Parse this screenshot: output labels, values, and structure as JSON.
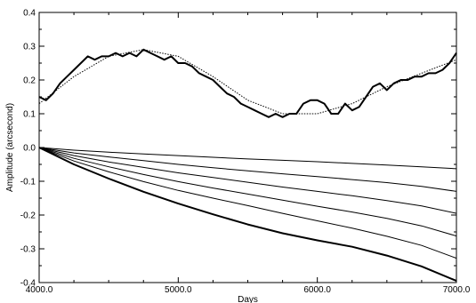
{
  "chart_data": {
    "type": "line",
    "title": "",
    "xlabel": "Days",
    "ylabel": "Amplitude (arcsecond)",
    "xlim": [
      4000,
      7000
    ],
    "ylim": [
      -0.4,
      0.4
    ],
    "x_ticks": [
      4000,
      5000,
      6000,
      7000
    ],
    "x_tick_labels": [
      "4000.0",
      "5000.0",
      "6000.0",
      "7000.0"
    ],
    "y_ticks": [
      -0.4,
      -0.3,
      -0.2,
      -0.1,
      0.0,
      0.1,
      0.2,
      0.3,
      0.4
    ],
    "y_tick_labels": [
      "-0.4",
      "-0.3",
      "-0.2",
      "-0.1",
      "0.0",
      "0.1",
      "0.2",
      "0.3",
      "0.4"
    ],
    "grid": false,
    "legend": "none",
    "series": [
      {
        "style": "thick",
        "x": [
          4000,
          4050,
          4100,
          4150,
          4200,
          4250,
          4300,
          4350,
          4400,
          4450,
          4500,
          4550,
          4600,
          4650,
          4700,
          4750,
          4800,
          4850,
          4900,
          4950,
          5000,
          5050,
          5100,
          5150,
          5200,
          5250,
          5300,
          5350,
          5400,
          5450,
          5500,
          5550,
          5600,
          5650,
          5700,
          5750,
          5800,
          5850,
          5900,
          5950,
          6000,
          6050,
          6100,
          6150,
          6200,
          6250,
          6300,
          6350,
          6400,
          6450,
          6500,
          6550,
          6600,
          6650,
          6700,
          6750,
          6800,
          6850,
          6900,
          6950,
          7000
        ],
        "y": [
          0.15,
          0.14,
          0.16,
          0.19,
          0.21,
          0.23,
          0.25,
          0.27,
          0.26,
          0.27,
          0.27,
          0.28,
          0.27,
          0.28,
          0.27,
          0.29,
          0.28,
          0.27,
          0.26,
          0.27,
          0.25,
          0.25,
          0.24,
          0.22,
          0.21,
          0.2,
          0.18,
          0.16,
          0.15,
          0.13,
          0.12,
          0.11,
          0.1,
          0.09,
          0.1,
          0.09,
          0.1,
          0.1,
          0.13,
          0.14,
          0.14,
          0.13,
          0.1,
          0.1,
          0.13,
          0.11,
          0.12,
          0.15,
          0.18,
          0.19,
          0.17,
          0.19,
          0.2,
          0.2,
          0.21,
          0.21,
          0.22,
          0.22,
          0.23,
          0.25,
          0.28
        ]
      },
      {
        "style": "dotted",
        "x": [
          4000,
          4250,
          4500,
          4750,
          5000,
          5250,
          5500,
          5750,
          6000,
          6250,
          6500,
          6750,
          7000
        ],
        "y": [
          0.13,
          0.21,
          0.27,
          0.29,
          0.27,
          0.21,
          0.14,
          0.1,
          0.1,
          0.13,
          0.18,
          0.22,
          0.26
        ]
      },
      {
        "style": "thin",
        "x": [
          4000,
          4250,
          4500,
          4750,
          5000,
          5250,
          5500,
          5750,
          6000,
          6250,
          6500,
          6750,
          7000
        ],
        "y": [
          0.0,
          -0.008,
          -0.014,
          -0.019,
          -0.024,
          -0.029,
          -0.034,
          -0.038,
          -0.042,
          -0.047,
          -0.052,
          -0.057,
          -0.063
        ]
      },
      {
        "style": "thin",
        "x": [
          4000,
          4250,
          4500,
          4750,
          5000,
          5250,
          5500,
          5750,
          6000,
          6250,
          6500,
          6750,
          7000
        ],
        "y": [
          0.0,
          -0.016,
          -0.028,
          -0.039,
          -0.05,
          -0.06,
          -0.069,
          -0.078,
          -0.086,
          -0.095,
          -0.104,
          -0.115,
          -0.13
        ]
      },
      {
        "style": "thin",
        "x": [
          4000,
          4250,
          4500,
          4750,
          5000,
          5250,
          5500,
          5750,
          6000,
          6250,
          6500,
          6750,
          7000
        ],
        "y": [
          0.0,
          -0.024,
          -0.043,
          -0.059,
          -0.075,
          -0.089,
          -0.103,
          -0.117,
          -0.13,
          -0.143,
          -0.157,
          -0.173,
          -0.195
        ]
      },
      {
        "style": "thin",
        "x": [
          4000,
          4250,
          4500,
          4750,
          5000,
          5250,
          5500,
          5750,
          6000,
          6250,
          6500,
          6750,
          7000
        ],
        "y": [
          0.0,
          -0.032,
          -0.057,
          -0.08,
          -0.101,
          -0.12,
          -0.138,
          -0.156,
          -0.174,
          -0.191,
          -0.21,
          -0.232,
          -0.262
        ]
      },
      {
        "style": "thin",
        "x": [
          4000,
          4250,
          4500,
          4750,
          5000,
          5250,
          5500,
          5750,
          6000,
          6250,
          6500,
          6750,
          7000
        ],
        "y": [
          0.0,
          -0.04,
          -0.072,
          -0.101,
          -0.127,
          -0.15,
          -0.172,
          -0.195,
          -0.217,
          -0.239,
          -0.263,
          -0.29,
          -0.328
        ]
      },
      {
        "style": "thick",
        "x": [
          4000,
          4250,
          4500,
          4750,
          5000,
          5250,
          5500,
          5750,
          6000,
          6250,
          6500,
          6750,
          7000
        ],
        "y": [
          0.0,
          -0.05,
          -0.092,
          -0.131,
          -0.166,
          -0.198,
          -0.228,
          -0.254,
          -0.275,
          -0.294,
          -0.32,
          -0.352,
          -0.395
        ]
      }
    ]
  }
}
